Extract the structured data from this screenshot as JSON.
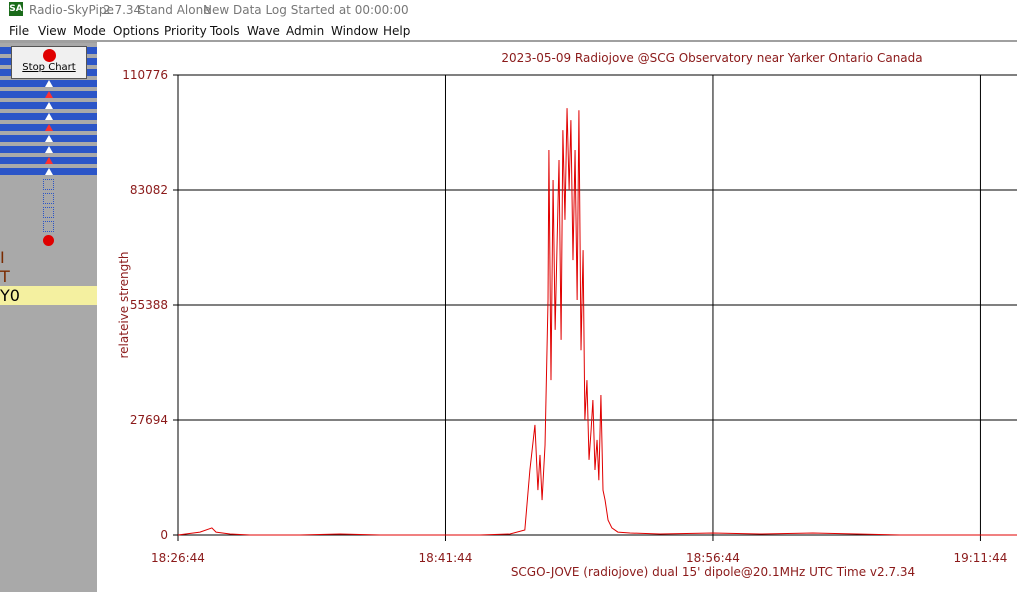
{
  "window": {
    "icon": "SA",
    "app_name": "Radio-SkyPipe",
    "version": "2.7.34",
    "mode": "Stand Alone",
    "status": "New Data Log Started at 00:00:00"
  },
  "menu": [
    "File",
    "View",
    "Mode",
    "Options",
    "Priority",
    "Tools",
    "Wave",
    "Admin",
    "Window",
    "Help"
  ],
  "toolbar": {
    "stop_button": "Stop Chart",
    "icon_labels": [
      "I",
      "T",
      "Y0"
    ]
  },
  "chart_data": {
    "type": "line",
    "title": "2023-05-09 Radiojove @SCG Observatory near Yarker Ontario Canada",
    "x_label": "SCGO-JOVE (radiojove) dual 15' dipole@20.1MHz UTC Time v2.7.34",
    "y_label": "relateive strength",
    "x": [
      "18:26:44",
      "18:27:58",
      "18:28:38",
      "18:28:52",
      "18:29:39",
      "18:30:46",
      "18:33:34",
      "18:35:49",
      "18:38:04",
      "18:41:46",
      "18:43:40",
      "18:45:21",
      "18:46:11",
      "18:46:28",
      "18:46:45",
      "18:46:55",
      "18:47:02",
      "18:47:09",
      "18:47:19",
      "18:47:29",
      "18:47:32",
      "18:47:39",
      "18:47:46",
      "18:47:53",
      "18:47:59",
      "18:48:06",
      "18:48:13",
      "18:48:19",
      "18:48:26",
      "18:48:33",
      "18:48:40",
      "18:48:46",
      "18:48:53",
      "18:49:00",
      "18:49:07",
      "18:49:13",
      "18:49:20",
      "18:49:27",
      "18:49:33",
      "18:49:40",
      "18:49:47",
      "18:49:54",
      "18:50:00",
      "18:50:07",
      "18:50:14",
      "18:50:20",
      "18:50:27",
      "18:50:34",
      "18:50:41",
      "18:50:51",
      "18:51:04",
      "18:51:24",
      "18:52:05",
      "18:53:46",
      "18:56:44",
      "18:59:22",
      "19:02:20",
      "19:07:13",
      "19:11:46",
      "19:13:47"
    ],
    "series": [
      {
        "name": "relateive strength",
        "color": "#e00000",
        "values": [
          0,
          700,
          1700,
          700,
          240,
          0,
          0,
          240,
          0,
          0,
          0,
          240,
          1200,
          15650,
          26500,
          10800,
          19300,
          8400,
          21700,
          56600,
          92700,
          37300,
          85500,
          49400,
          68600,
          90300,
          47000,
          97500,
          75900,
          102800,
          83100,
          99900,
          66200,
          92700,
          56600,
          102300,
          44500,
          68600,
          27700,
          37300,
          18100,
          25300,
          32500,
          15650,
          22900,
          13200,
          33700,
          10800,
          8400,
          3600,
          1700,
          700,
          480,
          240,
          480,
          240,
          480,
          0,
          0,
          0
        ]
      }
    ],
    "xlim": [
      "18:26:44",
      "19:13:47"
    ],
    "xticks": [
      "18:26:44",
      "18:41:44",
      "18:56:44",
      "19:11:44"
    ],
    "ylim": [
      0,
      110776
    ],
    "yticks": [
      0,
      27694,
      55388,
      83082,
      110776
    ],
    "grid": true
  }
}
